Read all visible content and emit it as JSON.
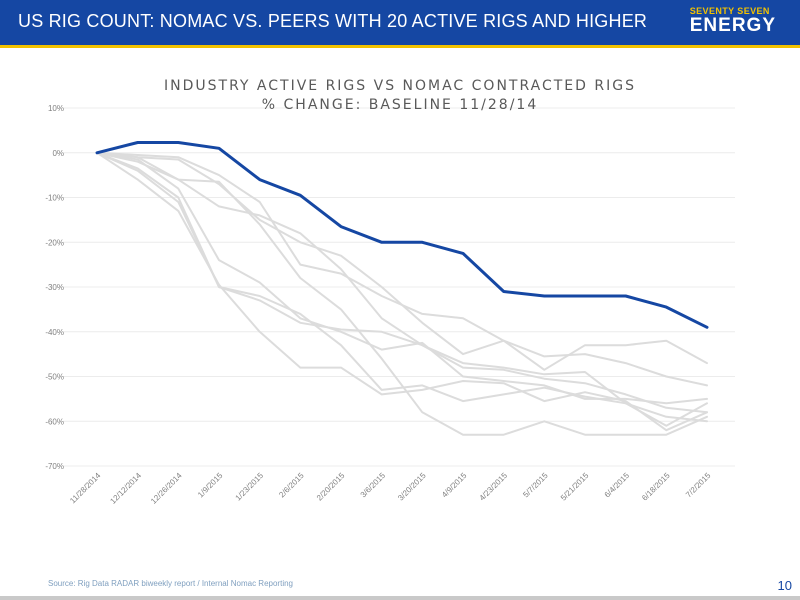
{
  "header": {
    "title": "US RIG COUNT: NOMAC VS. PEERS WITH 20 ACTIVE RIGS AND HIGHER",
    "logo_top": "SEVENTY SEVEN",
    "logo_bottom": "ENERGY"
  },
  "chart_data": {
    "type": "line",
    "title_line1": "INDUSTRY ACTIVE RIGS VS NOMAC CONTRACTED RIGS",
    "title_line2": "% CHANGE: BASELINE 11/28/14",
    "categories": [
      "11/28/2014",
      "12/12/2014",
      "12/26/2014",
      "1/9/2015",
      "1/23/2015",
      "2/6/2015",
      "2/20/2015",
      "3/6/2015",
      "3/20/2015",
      "4/9/2015",
      "4/23/2015",
      "5/7/2015",
      "5/21/2015",
      "6/4/2015",
      "6/18/2015",
      "7/2/2015"
    ],
    "ylim": [
      -70,
      10
    ],
    "yticks": [
      10,
      0,
      -10,
      -20,
      -30,
      -40,
      -50,
      -60,
      -70
    ],
    "ytick_labels": [
      "10%",
      "0%",
      "-10%",
      "-20%",
      "-30%",
      "-40%",
      "-50%",
      "-60%",
      "-70%"
    ],
    "grid": true,
    "highlight_color": "#1547a3",
    "peer_color": "#dcdcdc",
    "series": [
      {
        "role": "highlight",
        "values": [
          0,
          2.3,
          2.3,
          1,
          -6,
          -9.5,
          -16.5,
          -20,
          -20,
          -22.5,
          -31,
          -32,
          -32,
          -32,
          -34.5,
          -39
        ]
      },
      {
        "role": "peer",
        "values": [
          0,
          -1,
          -1.5,
          -7,
          -15,
          -20,
          -23,
          -30,
          -38,
          -45,
          -42,
          -45.5,
          -45,
          -47,
          -50,
          -52
        ]
      },
      {
        "role": "peer",
        "values": [
          0,
          -0.5,
          -1,
          -5,
          -11,
          -25,
          -27,
          -32,
          -36,
          -37,
          -42,
          -48.5,
          -43,
          -43,
          -42,
          -47
        ]
      },
      {
        "role": "peer",
        "values": [
          0,
          -2,
          -6,
          -12,
          -14,
          -18,
          -26,
          -37,
          -43,
          -48,
          -48.5,
          -50.5,
          -51.5,
          -54,
          -57,
          -58
        ]
      },
      {
        "role": "peer",
        "values": [
          0,
          -1.5,
          -8,
          -24,
          -29,
          -37,
          -40,
          -44,
          -42.5,
          -50,
          -51,
          -52,
          -55,
          -55,
          -56,
          -55
        ]
      },
      {
        "role": "peer",
        "values": [
          0,
          -3.5,
          -10,
          -30,
          -32,
          -36,
          -43,
          -53,
          -52,
          -55.5,
          -54,
          -52.5,
          -54.5,
          -56,
          -61,
          -56
        ]
      },
      {
        "role": "peer",
        "values": [
          0,
          -1,
          -6,
          -6.5,
          -16,
          -28,
          -35,
          -46,
          -58,
          -63,
          -63,
          -60,
          -63,
          -63,
          -63,
          -59
        ]
      },
      {
        "role": "peer",
        "values": [
          0,
          -6,
          -13,
          -29.5,
          -40,
          -48,
          -48,
          -54,
          -53,
          -51,
          -51.5,
          -55.5,
          -53.5,
          -55.5,
          -62,
          -58
        ]
      },
      {
        "role": "peer",
        "values": [
          0,
          -4,
          -11,
          -30,
          -33,
          -38,
          -39.5,
          -40,
          -43,
          -47,
          -48,
          -49.5,
          -49,
          -56,
          -59,
          -60
        ]
      }
    ]
  },
  "footer": {
    "source": "Source: Rig Data RADAR biweekly report / Internal Nomac Reporting",
    "page_number": "10"
  }
}
